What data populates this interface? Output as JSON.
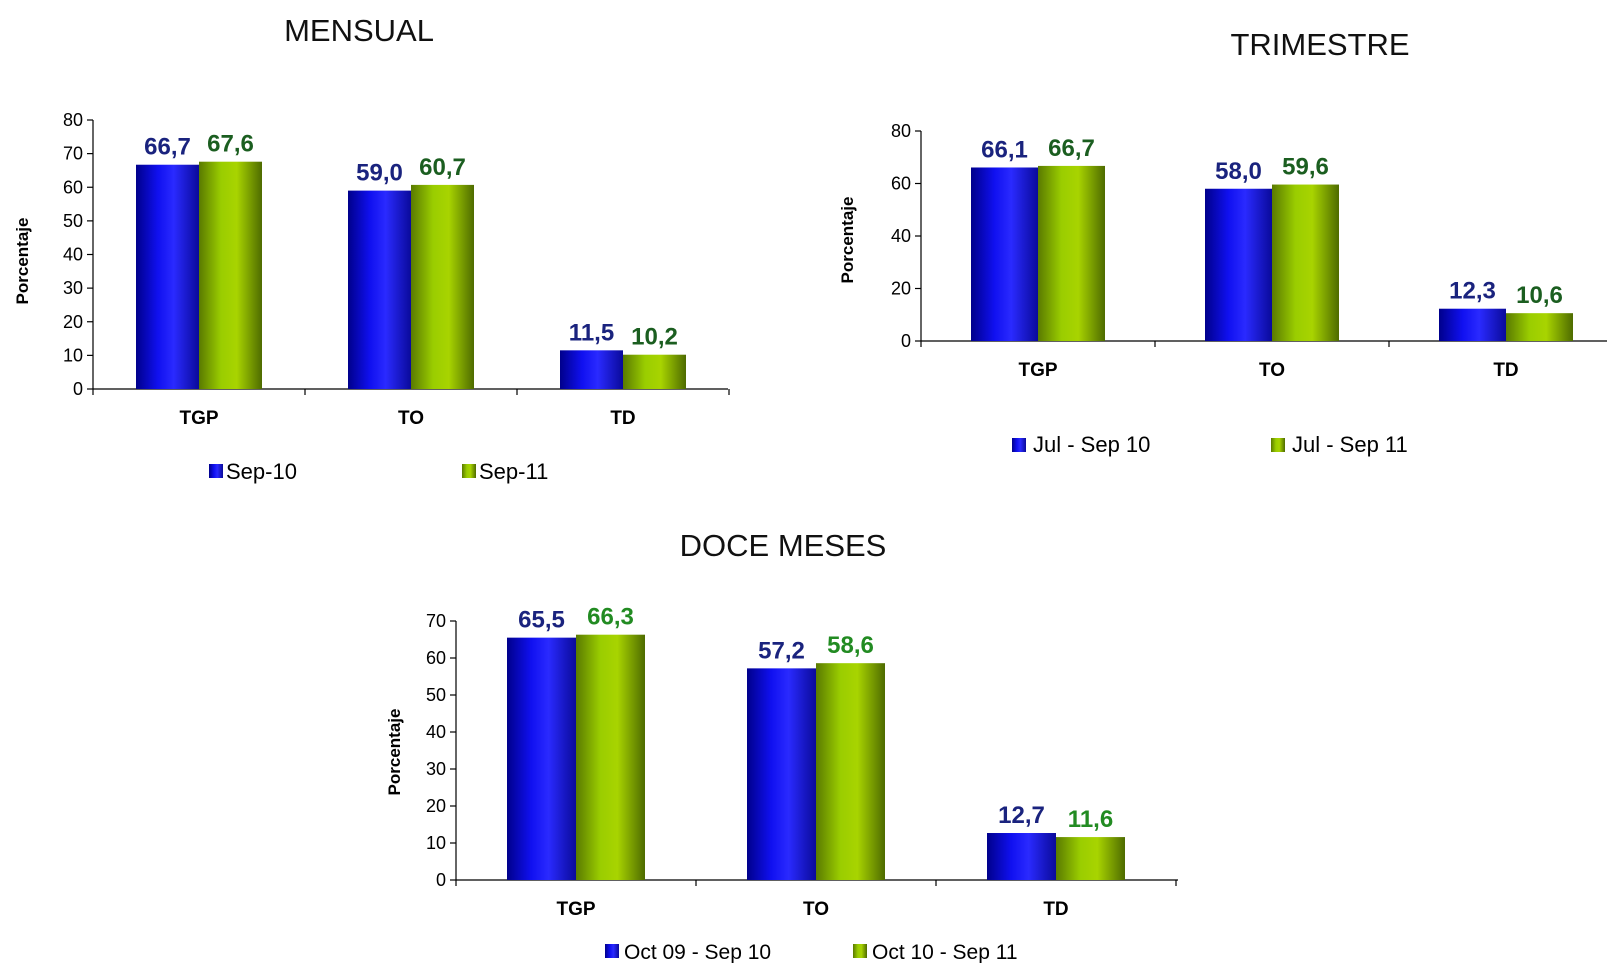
{
  "colors": {
    "series1_bar": "blue-gradient",
    "series2_bar": "green-gradient",
    "label_blue": "#1a237e",
    "label_green_dark": "#1b5e20",
    "label_green_bright": "#228b22"
  },
  "chart_data": [
    {
      "type": "bar",
      "title": "MENSUAL",
      "ylabel": "Porcentaje",
      "ylim": [
        0,
        80
      ],
      "yticks": [
        0,
        10,
        20,
        30,
        40,
        50,
        60,
        70,
        80
      ],
      "categories": [
        "TGP",
        "TO",
        "TD"
      ],
      "series": [
        {
          "name": "Sep-10",
          "values": [
            66.7,
            59.0,
            11.5
          ],
          "labels": [
            "66,7",
            "59,0",
            "11,5"
          ],
          "label_color": "#1a237e"
        },
        {
          "name": "Sep-11",
          "values": [
            67.6,
            60.7,
            10.2
          ],
          "labels": [
            "67,6",
            "60,7",
            "10,2"
          ],
          "label_color": "#1b5e20"
        }
      ],
      "legend": "bottom",
      "grid": false
    },
    {
      "type": "bar",
      "title": "TRIMESTRE",
      "ylabel": "Porcentaje",
      "ylim": [
        0,
        80
      ],
      "yticks": [
        0,
        20,
        40,
        60,
        80
      ],
      "categories": [
        "TGP",
        "TO",
        "TD"
      ],
      "series": [
        {
          "name": "Jul - Sep 10",
          "values": [
            66.1,
            58.0,
            12.3
          ],
          "labels": [
            "66,1",
            "58,0",
            "12,3"
          ],
          "label_color": "#1a237e"
        },
        {
          "name": "Jul - Sep 11",
          "values": [
            66.7,
            59.6,
            10.6
          ],
          "labels": [
            "66,7",
            "59,6",
            "10,6"
          ],
          "label_color": "#1b5e20"
        }
      ],
      "legend": "bottom",
      "grid": false
    },
    {
      "type": "bar",
      "title": "DOCE MESES",
      "ylabel": "Porcentaje",
      "ylim": [
        0,
        70
      ],
      "yticks": [
        0,
        10,
        20,
        30,
        40,
        50,
        60,
        70
      ],
      "categories": [
        "TGP",
        "TO",
        "TD"
      ],
      "series": [
        {
          "name": "Oct 09 - Sep 10",
          "values": [
            65.5,
            57.2,
            12.7
          ],
          "labels": [
            "65,5",
            "57,2",
            "12,7"
          ],
          "label_color": "#1a237e"
        },
        {
          "name": "Oct 10 - Sep 11",
          "values": [
            66.3,
            58.6,
            11.6
          ],
          "labels": [
            "66,3",
            "58,6",
            "11,6"
          ],
          "label_color": "#228b22"
        }
      ],
      "legend": "bottom",
      "grid": false
    }
  ]
}
